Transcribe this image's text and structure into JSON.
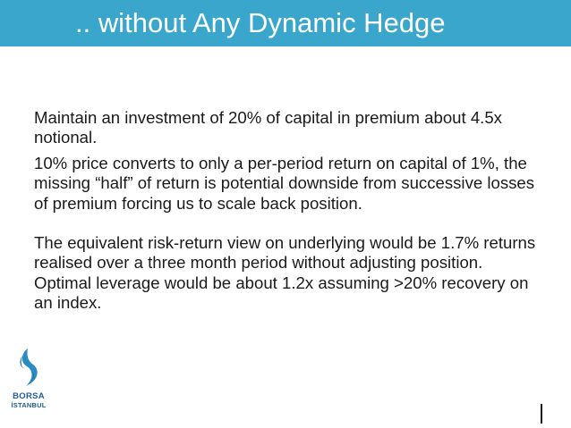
{
  "slide": {
    "title": ".. without Any Dynamic Hedge",
    "paragraphs": [
      "Maintain an investment of 20% of capital in premium about 4.5x notional.",
      "10% price converts to only a per-period return on capital of 1%, the missing “half” of return is potential downside from successive losses of premium forcing us to scale back position.",
      "The equivalent risk-return view on underlying would be 1.7% returns realised over a three month period without adjusting position.  Optimal leverage would be about 1.2x assuming >20% recovery on an index."
    ]
  },
  "logo": {
    "line1": "BORSA",
    "line2": "İSTANBUL",
    "icon": "borsa-istanbul-logo-icon"
  },
  "colors": {
    "title_bar": "#3aa6cc",
    "title_text": "#ffffff",
    "body_text": "#1a1a1a",
    "logo_blue": "#1d5f99"
  }
}
